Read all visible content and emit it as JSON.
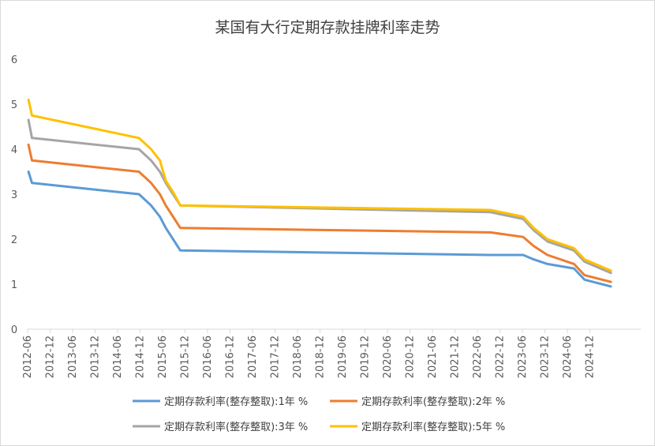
{
  "chart_data": {
    "type": "line",
    "title": "某国有大行定期存款挂牌利率走势",
    "xlabel": "",
    "ylabel": "",
    "ylim": [
      0,
      6
    ],
    "yticks": [
      "0",
      "1",
      "2",
      "3",
      "4",
      "5",
      "6"
    ],
    "xticks": [
      "2012-06",
      "2012-12",
      "2013-06",
      "2013-12",
      "2014-06",
      "2014-12",
      "2015-06",
      "2015-12",
      "2016-06",
      "2016-12",
      "2017-06",
      "2017-12",
      "2018-06",
      "2018-12",
      "2019-06",
      "2019-12",
      "2020-06",
      "2020-12",
      "2021-06",
      "2021-12",
      "2022-06",
      "2022-12",
      "2023-06",
      "2023-12",
      "2024-06",
      "2024-12"
    ],
    "legend_position": "bottom",
    "grid": false,
    "series": [
      {
        "name": "定期存款利率(整存整取):1年 %",
        "color": "#5b9bd5",
        "points": [
          [
            "2012-06-08",
            3.5
          ],
          [
            "2012-07-06",
            3.25
          ],
          [
            "2014-11-22",
            3.0
          ],
          [
            "2015-03-01",
            2.75
          ],
          [
            "2015-05-11",
            2.5
          ],
          [
            "2015-06-28",
            2.25
          ],
          [
            "2015-08-26",
            2.0
          ],
          [
            "2015-10-24",
            1.75
          ],
          [
            "2022-09-15",
            1.65
          ],
          [
            "2023-06-08",
            1.65
          ],
          [
            "2023-09-01",
            1.55
          ],
          [
            "2023-12-22",
            1.45
          ],
          [
            "2024-07-25",
            1.35
          ],
          [
            "2024-10-18",
            1.1
          ],
          [
            "2025-05-20",
            0.95
          ]
        ]
      },
      {
        "name": "定期存款利率(整存整取):2年 %",
        "color": "#ed7d31",
        "points": [
          [
            "2012-06-08",
            4.1
          ],
          [
            "2012-07-06",
            3.75
          ],
          [
            "2014-11-22",
            3.5
          ],
          [
            "2015-03-01",
            3.25
          ],
          [
            "2015-05-11",
            3.0
          ],
          [
            "2015-06-28",
            2.75
          ],
          [
            "2015-08-26",
            2.5
          ],
          [
            "2015-10-24",
            2.25
          ],
          [
            "2022-09-15",
            2.15
          ],
          [
            "2023-06-08",
            2.05
          ],
          [
            "2023-09-01",
            1.85
          ],
          [
            "2023-12-22",
            1.65
          ],
          [
            "2024-07-25",
            1.45
          ],
          [
            "2024-10-18",
            1.2
          ],
          [
            "2025-05-20",
            1.05
          ]
        ]
      },
      {
        "name": "定期存款利率(整存整取):3年 %",
        "color": "#a5a5a5",
        "points": [
          [
            "2012-06-08",
            4.65
          ],
          [
            "2012-07-06",
            4.25
          ],
          [
            "2014-11-22",
            4.0
          ],
          [
            "2015-03-01",
            3.75
          ],
          [
            "2015-05-11",
            3.5
          ],
          [
            "2015-06-28",
            3.25
          ],
          [
            "2015-08-26",
            3.0
          ],
          [
            "2015-10-24",
            2.75
          ],
          [
            "2022-09-15",
            2.6
          ],
          [
            "2023-06-08",
            2.45
          ],
          [
            "2023-09-01",
            2.2
          ],
          [
            "2023-12-22",
            1.95
          ],
          [
            "2024-07-25",
            1.75
          ],
          [
            "2024-10-18",
            1.5
          ],
          [
            "2025-05-20",
            1.25
          ]
        ]
      },
      {
        "name": "定期存款利率(整存整取):5年 %",
        "color": "#ffc000",
        "points": [
          [
            "2012-06-08",
            5.1
          ],
          [
            "2012-07-06",
            4.75
          ],
          [
            "2014-11-22",
            4.25
          ],
          [
            "2015-03-01",
            4.0
          ],
          [
            "2015-05-11",
            3.75
          ],
          [
            "2015-06-28",
            3.3
          ],
          [
            "2015-08-26",
            3.05
          ],
          [
            "2015-10-24",
            2.75
          ],
          [
            "2022-09-15",
            2.65
          ],
          [
            "2023-06-08",
            2.5
          ],
          [
            "2023-09-01",
            2.25
          ],
          [
            "2023-12-22",
            2.0
          ],
          [
            "2024-07-25",
            1.8
          ],
          [
            "2024-10-18",
            1.55
          ],
          [
            "2025-05-20",
            1.3
          ]
        ]
      }
    ]
  }
}
